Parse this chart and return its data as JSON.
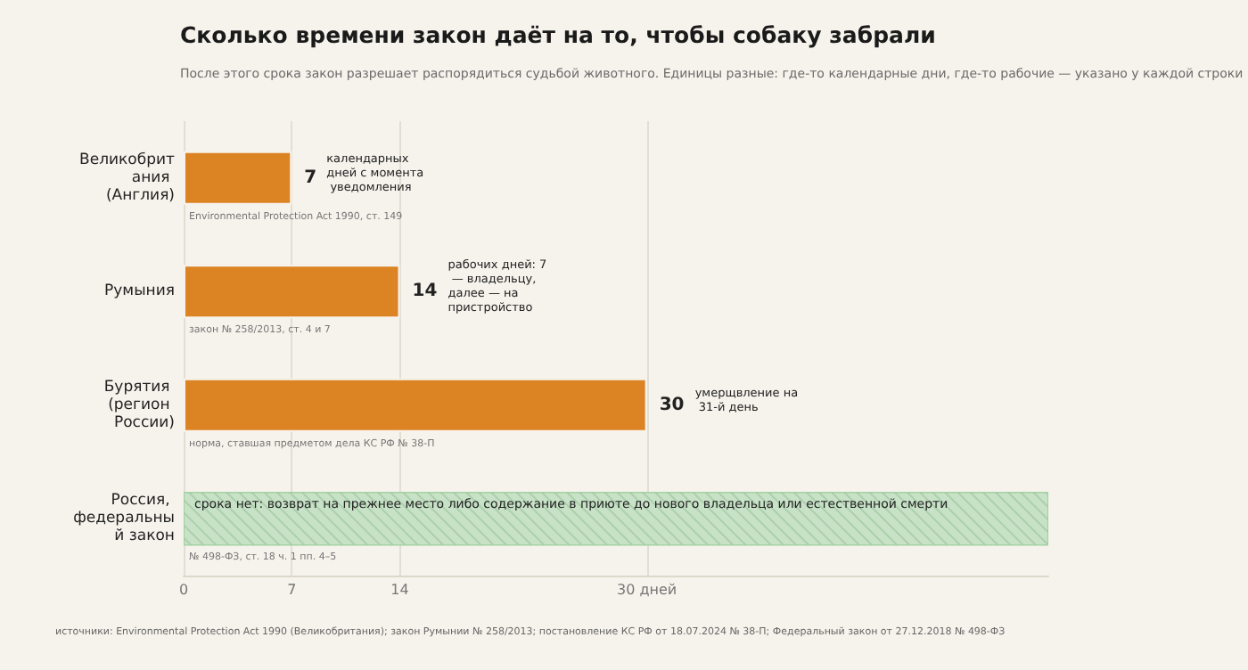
{
  "chart_data": {
    "type": "bar",
    "orientation": "horizontal",
    "title": "Сколько времени закон даёт на то, чтобы собаку забрали",
    "subtitle": "После этого срока закон разрешает распорядиться судьбой животного. Единицы разные: где-то календарные дни, где-то рабочие — указано у каждой строки",
    "categories": [
      "Великобритания (Англия)",
      "Румыния",
      "Бурятия (регион России)",
      "Россия, федеральный закон"
    ],
    "series": [
      {
        "color": "#dc8324",
        "values": [
          7,
          14,
          30,
          null
        ],
        "value_labels": [
          "7",
          "14",
          "30",
          null
        ]
      },
      {
        "color": "#c8e2c8",
        "values": [
          null,
          null,
          null,
          56
        ],
        "value_labels": [
          null,
          null,
          null,
          "срока нет: возврат на прежнее место либо содержание в приюте до нового владельца или естественной смерти"
        ]
      }
    ],
    "xlim": [
      0,
      56
    ],
    "xticks": [
      0,
      7,
      14,
      {
        "value": 30,
        "label": "30 дней"
      }
    ],
    "grid": "x",
    "annotations": [
      "календарных дней с момента уведомления",
      "рабочих дней: 7 — владельцу, далее — на пристройство",
      "умерщвление на 31-й день",
      "Environmental Protection Act 1990, ст. 149",
      "закон № 258/2013, ст. 4 и 7",
      "норма, ставшая предметом дела КС РФ № 38-П",
      "№ 498-ФЗ, ст. 18 ч. 1 пп. 4–5",
      "источники: Environmental Protection Act 1990 (Великобритания); закон Румынии № 258/2013; постановление КС РФ от 18.07.2024 № 38-П; Федеральный закон от 27.12.2018 № 498-ФЗ"
    ]
  }
}
